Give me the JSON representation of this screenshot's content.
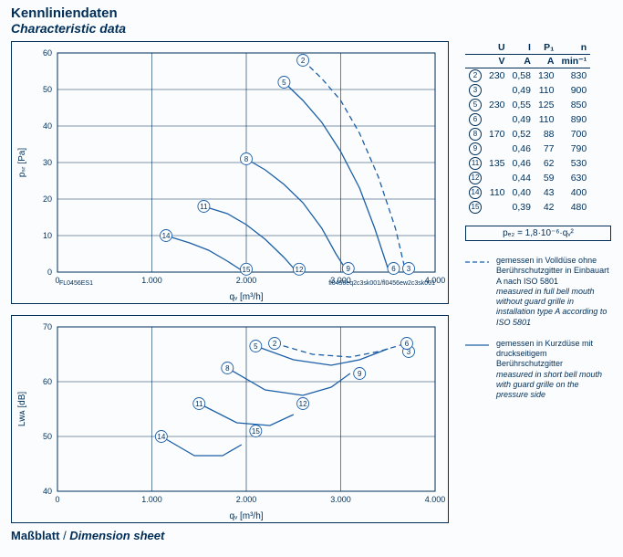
{
  "title_de": "Kennliniendaten",
  "title_en": "Characteristic data",
  "footer_de": "Maßblatt",
  "footer_en": "Dimension sheet",
  "chart_code_left": "FL0456ES1",
  "chart_code_right": "fl0456eq2c3sk001/fl0456ew2c3sk001",
  "formula": "pₑ₂ = 1,8·10⁻⁶·qᵥ²",
  "colors": {
    "axis": "#002e58",
    "curve": "#1c5fa7",
    "grid_bg": "#fafcfd"
  },
  "legend": {
    "dashed_de": "gemessen in Volldüse ohne Berührschutzgitter in Einbauart A nach ISO 5801",
    "dashed_en": "measured in full bell mouth without guard grille in installation type A according to ISO 5801",
    "solid_de": "gemessen in Kurzdüse mit druckseitigem Berührschutzgitter",
    "solid_en": "measured in short bell mouth with guard grille on the pressure side"
  },
  "table": {
    "head1": [
      "U",
      "I",
      "P₁",
      "n"
    ],
    "head2": [
      "V",
      "A",
      "A",
      "min⁻¹"
    ],
    "rows": [
      {
        "n": "2",
        "u": "230",
        "i": "0,58",
        "p": "130",
        "rpm": "830"
      },
      {
        "n": "3",
        "u": "",
        "i": "0,49",
        "p": "110",
        "rpm": "900"
      },
      {
        "n": "5",
        "u": "230",
        "i": "0,55",
        "p": "125",
        "rpm": "850"
      },
      {
        "n": "6",
        "u": "",
        "i": "0,49",
        "p": "110",
        "rpm": "890"
      },
      {
        "n": "8",
        "u": "170",
        "i": "0,52",
        "p": "88",
        "rpm": "700"
      },
      {
        "n": "9",
        "u": "",
        "i": "0,46",
        "p": "77",
        "rpm": "790"
      },
      {
        "n": "11",
        "u": "135",
        "i": "0,46",
        "p": "62",
        "rpm": "530"
      },
      {
        "n": "12",
        "u": "",
        "i": "0,44",
        "p": "59",
        "rpm": "630"
      },
      {
        "n": "14",
        "u": "110",
        "i": "0,40",
        "p": "43",
        "rpm": "400"
      },
      {
        "n": "15",
        "u": "",
        "i": "0,39",
        "p": "42",
        "rpm": "480"
      }
    ]
  },
  "chart_top": {
    "type": "line",
    "xlim": [
      0,
      4000
    ],
    "ylim": [
      0,
      60
    ],
    "xticks": [
      0,
      1000,
      2000,
      3000,
      4000
    ],
    "xticklabels": [
      "0",
      "1.000",
      "2.000",
      "3.000",
      "4.000"
    ],
    "yticks": [
      0,
      10,
      20,
      30,
      40,
      50,
      60
    ],
    "xlabel": "qᵥ [m³/h]",
    "ylabel": "pₛᵣ [Pa]",
    "curves": [
      {
        "label": "2",
        "dashed": true,
        "pts": [
          [
            2600,
            58
          ],
          [
            2800,
            53
          ],
          [
            3000,
            47
          ],
          [
            3200,
            38
          ],
          [
            3400,
            26
          ],
          [
            3580,
            12
          ],
          [
            3680,
            1
          ]
        ]
      },
      {
        "label": "3",
        "dashed": true,
        "pts": [
          [
            3720,
            1
          ],
          [
            3740,
            0
          ]
        ]
      },
      {
        "label": "5",
        "dashed": false,
        "pts": [
          [
            2400,
            52
          ],
          [
            2600,
            47
          ],
          [
            2800,
            41
          ],
          [
            3000,
            33
          ],
          [
            3200,
            23
          ],
          [
            3360,
            12
          ],
          [
            3500,
            1
          ]
        ]
      },
      {
        "label": "6",
        "dashed": false,
        "pts": [
          [
            3560,
            1
          ],
          [
            3580,
            0
          ]
        ]
      },
      {
        "label": "8",
        "dashed": false,
        "pts": [
          [
            2000,
            31
          ],
          [
            2200,
            28
          ],
          [
            2400,
            24
          ],
          [
            2600,
            19
          ],
          [
            2800,
            12
          ],
          [
            2950,
            5
          ],
          [
            3060,
            0.5
          ]
        ]
      },
      {
        "label": "9",
        "dashed": false,
        "pts": [
          [
            3080,
            1
          ],
          [
            3120,
            0
          ]
        ]
      },
      {
        "label": "11",
        "dashed": false,
        "pts": [
          [
            1550,
            18
          ],
          [
            1800,
            16
          ],
          [
            2000,
            13
          ],
          [
            2200,
            9
          ],
          [
            2400,
            4
          ],
          [
            2520,
            0.5
          ]
        ]
      },
      {
        "label": "12",
        "dashed": false,
        "pts": [
          [
            2560,
            0.8
          ],
          [
            2600,
            0
          ]
        ]
      },
      {
        "label": "14",
        "dashed": false,
        "pts": [
          [
            1150,
            10
          ],
          [
            1400,
            8
          ],
          [
            1600,
            6
          ],
          [
            1800,
            3
          ],
          [
            1950,
            0.5
          ]
        ]
      },
      {
        "label": "15",
        "dashed": false,
        "pts": [
          [
            2000,
            0.8
          ],
          [
            2040,
            0
          ]
        ]
      }
    ]
  },
  "chart_bottom": {
    "type": "line",
    "xlim": [
      0,
      4000
    ],
    "ylim": [
      40,
      70
    ],
    "xticks": [
      0,
      1000,
      2000,
      3000,
      4000
    ],
    "xticklabels": [
      "0",
      "1.000",
      "2.000",
      "3.000",
      "4.000"
    ],
    "yticks": [
      40,
      50,
      60,
      70
    ],
    "xlabel": "qᵥ [m³/h]",
    "ylabel": "Lᴡᴀ [dB]",
    "curves": [
      {
        "label": "2",
        "dashed": true,
        "pts": [
          [
            2300,
            67
          ],
          [
            2700,
            65
          ],
          [
            3100,
            64.5
          ],
          [
            3400,
            65.5
          ],
          [
            3700,
            67
          ]
        ]
      },
      {
        "label": "3",
        "dashed": true,
        "pts": [
          [
            3720,
            65.5
          ],
          [
            3740,
            65.5
          ]
        ]
      },
      {
        "label": "5",
        "dashed": false,
        "pts": [
          [
            2100,
            66.5
          ],
          [
            2500,
            64
          ],
          [
            2900,
            63
          ],
          [
            3200,
            64
          ],
          [
            3500,
            66
          ]
        ]
      },
      {
        "label": "6",
        "dashed": false,
        "pts": [
          [
            3700,
            67
          ],
          [
            3720,
            67
          ]
        ]
      },
      {
        "label": "8",
        "dashed": false,
        "pts": [
          [
            1800,
            62.5
          ],
          [
            2200,
            58.5
          ],
          [
            2600,
            57.5
          ],
          [
            2900,
            59
          ],
          [
            3100,
            61.5
          ]
        ]
      },
      {
        "label": "9",
        "dashed": false,
        "pts": [
          [
            3200,
            61.5
          ],
          [
            3220,
            61.5
          ]
        ]
      },
      {
        "label": "11",
        "dashed": false,
        "pts": [
          [
            1500,
            56
          ],
          [
            1900,
            52.5
          ],
          [
            2250,
            52
          ],
          [
            2500,
            54
          ]
        ]
      },
      {
        "label": "12",
        "dashed": false,
        "pts": [
          [
            2600,
            56
          ],
          [
            2620,
            56
          ]
        ]
      },
      {
        "label": "14",
        "dashed": false,
        "pts": [
          [
            1100,
            50
          ],
          [
            1450,
            46.5
          ],
          [
            1750,
            46.5
          ],
          [
            1950,
            48.5
          ]
        ]
      },
      {
        "label": "15",
        "dashed": false,
        "pts": [
          [
            2100,
            51
          ],
          [
            2120,
            51
          ]
        ]
      }
    ]
  }
}
